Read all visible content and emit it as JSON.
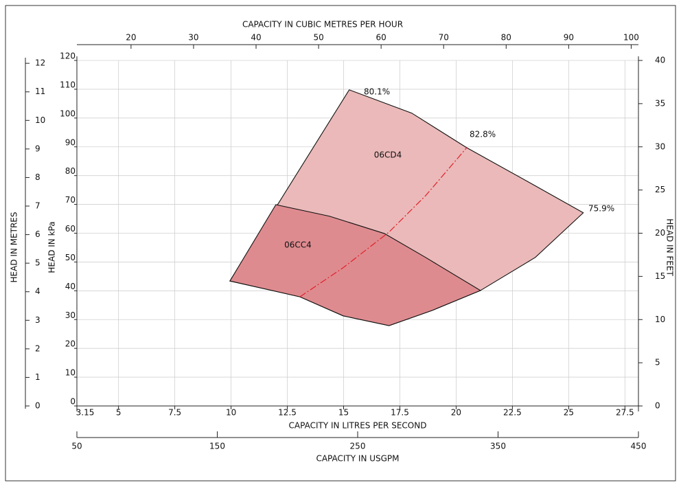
{
  "chart_data": {
    "type": "region",
    "axes": {
      "bottom": {
        "label": "CAPACITY IN LITRES PER SECOND",
        "lim": [
          3.15,
          28.1
        ],
        "ticks": [
          3.15,
          5,
          7.5,
          10,
          12.5,
          15,
          17.5,
          20,
          22.5,
          25,
          27.5
        ]
      },
      "top": {
        "label": "CAPACITY IN CUBIC METRES PER HOUR",
        "lim": [
          11.34,
          101.16
        ],
        "ticks": [
          20,
          30,
          40,
          50,
          60,
          70,
          80,
          90,
          100
        ]
      },
      "usgpm": {
        "label": "CAPACITY IN USGPM",
        "lim": [
          50,
          450
        ],
        "ticks": [
          50,
          150,
          250,
          350,
          450
        ]
      },
      "left_kpa": {
        "label": "HEAD IN kPa",
        "lim": [
          0,
          120
        ],
        "ticks": [
          0,
          10,
          20,
          30,
          40,
          50,
          60,
          70,
          80,
          90,
          100,
          110,
          120
        ]
      },
      "left_m": {
        "label": "HEAD IN METRES",
        "lim": [
          0,
          12.1
        ],
        "ticks": [
          0,
          1,
          2,
          3,
          4,
          5,
          6,
          7,
          8,
          9,
          10,
          11,
          12
        ]
      },
      "right_ft": {
        "label": "HEAD IN FEET",
        "lim": [
          0,
          40
        ],
        "ticks": [
          0,
          5,
          10,
          15,
          20,
          25,
          30,
          35,
          40
        ]
      }
    },
    "grid": true,
    "series": [
      {
        "name": "06CD4",
        "color": "#ebb9b9",
        "x": [
          9.95,
          15.25,
          18.03,
          20.47,
          23.21,
          25.65,
          23.52,
          21.08,
          18.94,
          17.02,
          14.98,
          13.06
        ],
        "values": [
          43.4,
          109.8,
          101.7,
          89.7,
          77.8,
          67.1,
          51.6,
          40.1,
          33.2,
          27.9,
          31.3,
          37.9
        ]
      },
      {
        "name": "06CC4",
        "color": "#de8b8f",
        "x": [
          9.95,
          11.99,
          14.37,
          16.81,
          18.64,
          21.08,
          18.94,
          17.02,
          14.98,
          13.06
        ],
        "values": [
          43.4,
          69.9,
          65.9,
          59.9,
          51.6,
          40.1,
          33.2,
          27.9,
          31.3,
          37.9
        ]
      }
    ],
    "efficiency_line": {
      "color": "#e0202a",
      "x": [
        13.06,
        14.98,
        17.02,
        18.64,
        20.47
      ],
      "values": [
        37.9,
        48.0,
        60.4,
        73.0,
        89.7
      ]
    },
    "annotations": [
      "80.1%",
      "82.8%",
      "75.9%"
    ]
  }
}
